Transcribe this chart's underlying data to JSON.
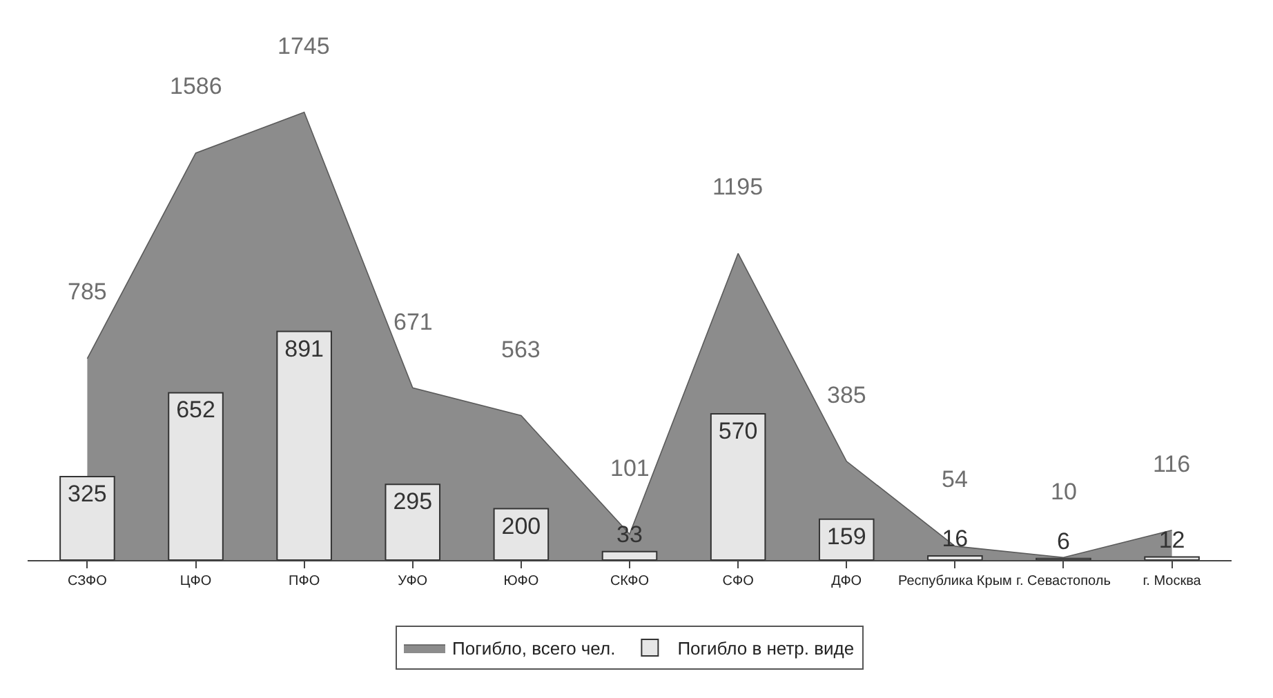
{
  "chart_data": {
    "type": "bar",
    "categories": [
      "СЗФО",
      "ЦФО",
      "ПФО",
      "УФО",
      "ЮФО",
      "СКФО",
      "СФО",
      "ДФО",
      "Республика Крым",
      "г. Севастополь",
      "г. Москва"
    ],
    "series": [
      {
        "name": "Погибло, всего чел.",
        "type": "area",
        "color": "#8c8c8c",
        "values": [
          785,
          1586,
          1745,
          671,
          563,
          101,
          1195,
          385,
          54,
          10,
          116
        ]
      },
      {
        "name": "Погибло в нетр. виде",
        "color": "#e6e6e6",
        "values": [
          325,
          652,
          891,
          295,
          200,
          33,
          570,
          159,
          16,
          6,
          12
        ]
      }
    ],
    "data_labels": true,
    "legend": "bottom"
  }
}
